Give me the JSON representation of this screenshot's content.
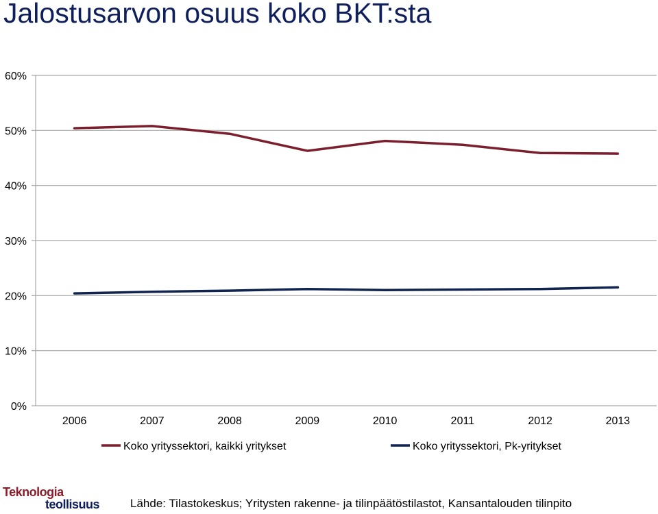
{
  "title": "Jalostusarvon osuus koko BKT:sta",
  "source": "Lähde: Tilastokeskus; Yritysten rakenne- ja tilinpäätöstilastot, Kansantalouden tilinpito",
  "logo": {
    "line1": "Teknologia",
    "line2": "teollisuus"
  },
  "chart_data": {
    "type": "line",
    "title": "Jalostusarvon osuus koko BKT:sta",
    "x": [
      "2006",
      "2007",
      "2008",
      "2009",
      "2010",
      "2011",
      "2012",
      "2013"
    ],
    "y_ticks": [
      "0%",
      "10%",
      "20%",
      "30%",
      "40%",
      "50%",
      "60%"
    ],
    "ylim": [
      0,
      60
    ],
    "grid": true,
    "legend_position": "bottom",
    "series": [
      {
        "name": "Koko yrityssektori, kaikki yritykset",
        "color": "#7b1f2e",
        "values": [
          50.4,
          50.8,
          49.4,
          46.3,
          48.1,
          47.4,
          45.9,
          45.8
        ]
      },
      {
        "name": "Koko yrityssektori, Pk-yritykset",
        "color": "#0f2550",
        "values": [
          20.4,
          20.7,
          20.9,
          21.2,
          21.0,
          21.1,
          21.2,
          21.5
        ]
      }
    ]
  }
}
